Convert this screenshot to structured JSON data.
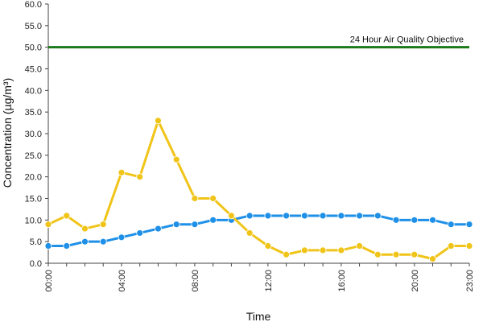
{
  "chart_data": {
    "type": "line",
    "title": "",
    "xlabel": "Time",
    "ylabel": "Concentration (µg/m³)",
    "ylim": [
      0,
      60
    ],
    "yticks": [
      "0.0",
      "5.0",
      "10.0",
      "15.0",
      "20.0",
      "25.0",
      "30.0",
      "35.0",
      "40.0",
      "45.0",
      "50.0",
      "55.0",
      "60.0"
    ],
    "xticks": [
      "00:00",
      "04:00",
      "08:00",
      "12:00",
      "16:00",
      "20:00",
      "23:00"
    ],
    "xtick_hours": [
      0,
      4,
      8,
      12,
      16,
      20,
      23
    ],
    "x": [
      0,
      1,
      2,
      3,
      4,
      5,
      6,
      7,
      8,
      9,
      10,
      11,
      12,
      13,
      14,
      15,
      16,
      17,
      18,
      19,
      20,
      21,
      22,
      23
    ],
    "grid": false,
    "legend": "none",
    "series": [
      {
        "color": "#1e90e8",
        "values": [
          4,
          4,
          5,
          5,
          6,
          7,
          8,
          9,
          9,
          10,
          10,
          11,
          11,
          11,
          11,
          11,
          11,
          11,
          11,
          10,
          10,
          10,
          9,
          9
        ]
      },
      {
        "color": "#f0c419",
        "values": [
          9,
          11,
          8,
          9,
          21,
          20,
          33,
          24,
          15,
          15,
          11,
          7,
          4,
          2,
          3,
          3,
          3,
          4,
          2,
          2,
          2,
          1,
          4,
          4
        ]
      }
    ],
    "reference_line": {
      "value": 50,
      "label": "24 Hour Air Quality Objective",
      "color": "#1a7a1a"
    }
  }
}
